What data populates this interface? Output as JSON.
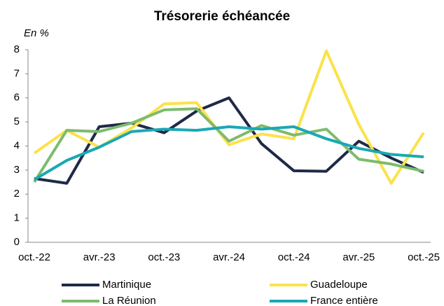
{
  "chart_data": {
    "type": "line",
    "title": "Trésorerie échéancée",
    "y_label": "En %",
    "categories": [
      "oct.-22",
      null,
      "avr.-23",
      null,
      "oct.-23",
      null,
      "avr.-24",
      null,
      "oct.-24",
      null,
      "avr.-25",
      null,
      "oct.-25"
    ],
    "series": [
      {
        "name": "Martinique",
        "color": "#1f2a48",
        "values": [
          2.65,
          2.45,
          4.8,
          4.95,
          4.55,
          5.45,
          6.0,
          4.1,
          2.97,
          2.95,
          4.2,
          3.5,
          2.9
        ]
      },
      {
        "name": "Guadeloupe",
        "color": "#fbe24a",
        "values": [
          3.7,
          4.65,
          3.95,
          4.75,
          5.75,
          5.8,
          4.05,
          4.5,
          4.3,
          7.95,
          4.9,
          2.45,
          4.55
        ]
      },
      {
        "name": "La Réunion",
        "color": "#7dbb6e",
        "values": [
          2.5,
          4.65,
          4.6,
          4.95,
          5.5,
          5.55,
          4.2,
          4.85,
          4.45,
          4.7,
          3.45,
          3.25,
          2.95
        ]
      },
      {
        "name": "France entière",
        "color": "#1aa8b4",
        "values": [
          2.6,
          3.4,
          3.95,
          4.6,
          4.7,
          4.65,
          4.8,
          4.7,
          4.8,
          4.3,
          3.9,
          3.65,
          3.55
        ]
      }
    ],
    "ylim": [
      0,
      8
    ],
    "yticks": [
      0,
      1,
      2,
      3,
      4,
      5,
      6,
      7,
      8
    ],
    "grid": false
  }
}
